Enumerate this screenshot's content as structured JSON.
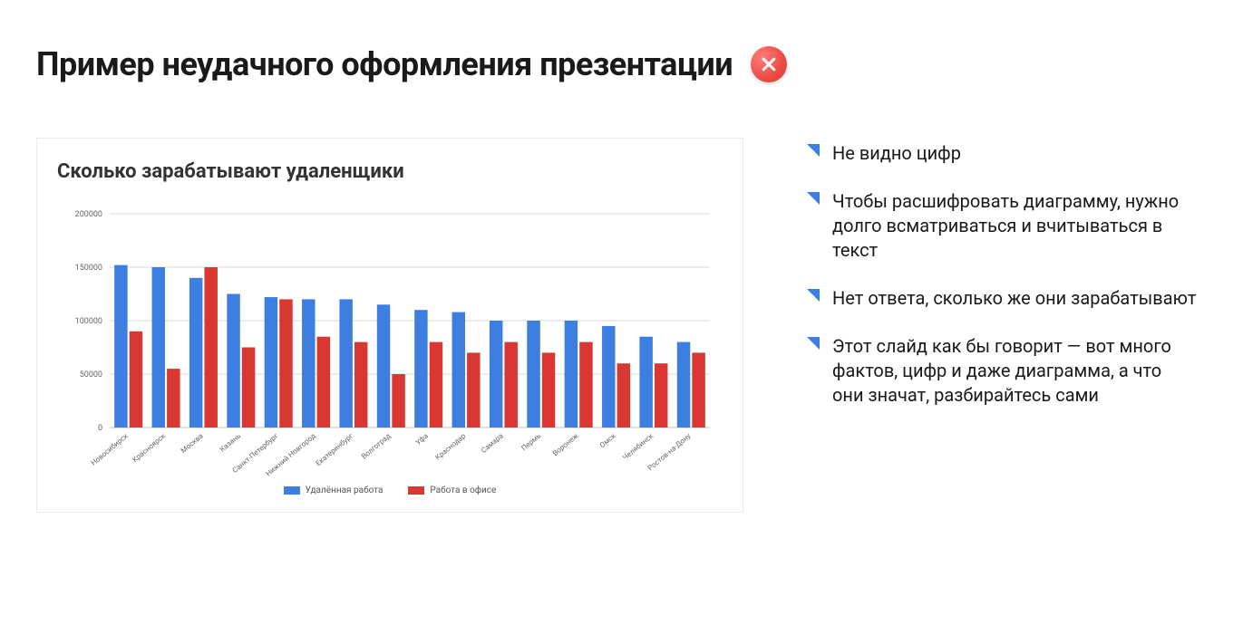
{
  "header": {
    "title": "Пример неудачного оформления презентации",
    "badge_icon": "close"
  },
  "chart": {
    "type": "bar",
    "title": "Сколько зарабатывают удаленщики",
    "categories": [
      "Новосибирск",
      "Красноярск",
      "Москва",
      "Казань",
      "Санкт-Петербург",
      "Нижний Новгород",
      "Екатеринбург",
      "Волгоград",
      "Уфа",
      "Краснодар",
      "Самара",
      "Пермь",
      "Воронеж",
      "Омск",
      "Челябинск",
      "Ростов-на-Дону"
    ],
    "series": [
      {
        "label": "Удалённая работа",
        "color": "#3d7fe0",
        "values": [
          152000,
          150000,
          140000,
          125000,
          122000,
          120000,
          120000,
          115000,
          110000,
          108000,
          100000,
          100000,
          100000,
          95000,
          85000,
          80000
        ]
      },
      {
        "label": "Работа в офисе",
        "color": "#d93832",
        "values": [
          90000,
          55000,
          150000,
          75000,
          120000,
          85000,
          80000,
          50000,
          80000,
          70000,
          80000,
          70000,
          80000,
          60000,
          60000,
          70000
        ]
      }
    ],
    "ylim": [
      0,
      200000
    ],
    "ytick_step": 50000,
    "grid_color": "#d9d9d9",
    "background_color": "#ffffff",
    "bar_group_gap": 0.25,
    "bar_inner_gap": 0.05,
    "title_fontsize": 22,
    "axis_fontsize": 9,
    "category_fontsize": 8
  },
  "bullets": {
    "marker_color": "#3d7fe0",
    "items": [
      "Не видно цифр",
      "Чтобы расшифровать диаграмму, нужно долго всматриваться и вчитываться в текст",
      "Нет ответа, сколько же они зарабатывают",
      "Этот слайд как бы говорит — вот много фактов, цифр и даже диаграмма, а что они значат, разбирайтесь сами"
    ]
  }
}
